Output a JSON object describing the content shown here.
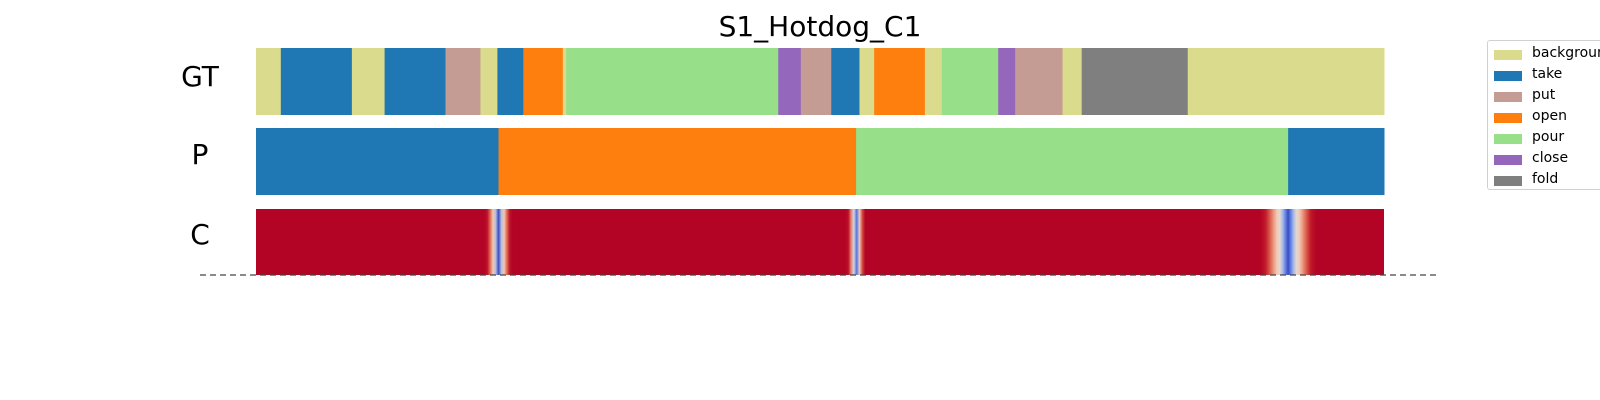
{
  "chart_data": {
    "type": "segmentation",
    "title": "S1_Hotdog_C1",
    "rows": [
      "GT",
      "P",
      "C"
    ],
    "classes": [
      {
        "name": "background",
        "color": "#dbdb8d"
      },
      {
        "name": "take",
        "color": "#1f77b4"
      },
      {
        "name": "put",
        "color": "#c49c94"
      },
      {
        "name": "open",
        "color": "#ff7f0e"
      },
      {
        "name": "pour",
        "color": "#98df8a"
      },
      {
        "name": "close",
        "color": "#9467bd"
      },
      {
        "name": "fold",
        "color": "#7f7f7f"
      }
    ],
    "timeline_range": [
      0,
      1000
    ],
    "gt_segments": [
      {
        "label": "background",
        "start": 0,
        "end": 22
      },
      {
        "label": "take",
        "start": 22,
        "end": 85
      },
      {
        "label": "background",
        "start": 85,
        "end": 114
      },
      {
        "label": "take",
        "start": 114,
        "end": 168
      },
      {
        "label": "put",
        "start": 168,
        "end": 199
      },
      {
        "label": "background",
        "start": 199,
        "end": 214
      },
      {
        "label": "take",
        "start": 214,
        "end": 237
      },
      {
        "label": "open",
        "start": 237,
        "end": 272
      },
      {
        "label": "background",
        "start": 272,
        "end": 275
      },
      {
        "label": "pour",
        "start": 275,
        "end": 463
      },
      {
        "label": "close",
        "start": 463,
        "end": 483
      },
      {
        "label": "put",
        "start": 483,
        "end": 510
      },
      {
        "label": "take",
        "start": 510,
        "end": 535
      },
      {
        "label": "background",
        "start": 535,
        "end": 548
      },
      {
        "label": "open",
        "start": 548,
        "end": 593
      },
      {
        "label": "background",
        "start": 593,
        "end": 608
      },
      {
        "label": "pour",
        "start": 608,
        "end": 658
      },
      {
        "label": "close",
        "start": 658,
        "end": 673
      },
      {
        "label": "put",
        "start": 673,
        "end": 715
      },
      {
        "label": "background",
        "start": 715,
        "end": 732
      },
      {
        "label": "fold",
        "start": 732,
        "end": 826
      },
      {
        "label": "background",
        "start": 826,
        "end": 1000
      }
    ],
    "pred_segments": [
      {
        "label": "take",
        "start": 0,
        "end": 215
      },
      {
        "label": "open",
        "start": 215,
        "end": 532
      },
      {
        "label": "pour",
        "start": 532,
        "end": 915
      },
      {
        "label": "take",
        "start": 915,
        "end": 1000
      }
    ],
    "confidence": {
      "base": 1.0,
      "dips": [
        {
          "center": 215,
          "width": 12
        },
        {
          "center": 532,
          "width": 8
        },
        {
          "center": 915,
          "width": 25
        }
      ],
      "colormap": "coolwarm"
    }
  }
}
